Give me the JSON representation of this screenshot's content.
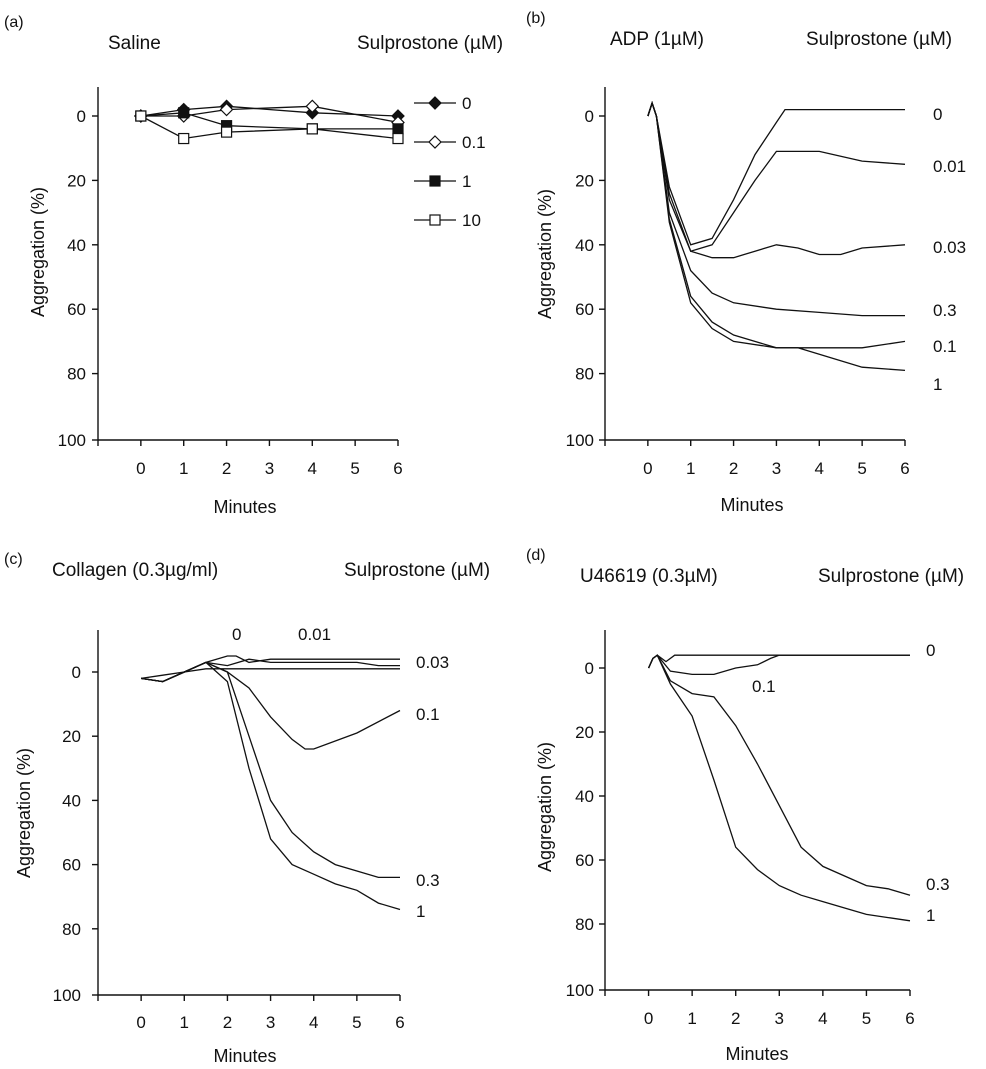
{
  "chart_data": [
    {
      "id": "a",
      "type": "line",
      "panel_label": "(a)",
      "title": "Saline",
      "legend_title": "Sulprostone (µM)",
      "xlabel": "Minutes",
      "ylabel": "Aggregation (%)",
      "xlim": [
        -1,
        6
      ],
      "ylim": [
        -8,
        100
      ],
      "y_inverted": true,
      "xticks": [
        "0",
        "1",
        "2",
        "3",
        "4",
        "5",
        "6"
      ],
      "yticks": [
        "0",
        "20",
        "40",
        "60",
        "80",
        "100"
      ],
      "legend_placement": "right",
      "series": [
        {
          "name": "0",
          "marker": "filled-diamond",
          "x": [
            0,
            1,
            2,
            4,
            6
          ],
          "y": [
            0,
            -2,
            -3,
            -1,
            0
          ]
        },
        {
          "name": "0.1",
          "marker": "open-diamond",
          "x": [
            0,
            1,
            2,
            4,
            6
          ],
          "y": [
            0,
            0,
            -2,
            -3,
            2
          ]
        },
        {
          "name": "1",
          "marker": "filled-square",
          "x": [
            0,
            1,
            2,
            4,
            6
          ],
          "y": [
            0,
            -1,
            3,
            4,
            4
          ]
        },
        {
          "name": "10",
          "marker": "open-square",
          "x": [
            0,
            1,
            2,
            4,
            6
          ],
          "y": [
            0,
            7,
            5,
            4,
            7
          ]
        }
      ]
    },
    {
      "id": "b",
      "type": "line",
      "panel_label": "(b)",
      "title": "ADP (1µM)",
      "legend_title": "Sulprostone (µM)",
      "xlabel": "Minutes",
      "ylabel": "Aggregation (%)",
      "xlim": [
        -1,
        6
      ],
      "ylim": [
        -8,
        100
      ],
      "y_inverted": true,
      "xticks": [
        "0",
        "1",
        "2",
        "3",
        "4",
        "5",
        "6"
      ],
      "yticks": [
        "0",
        "20",
        "40",
        "60",
        "80",
        "100"
      ],
      "series": [
        {
          "name": "0",
          "x": [
            0,
            0.1,
            0.2,
            0.5,
            1.0,
            1.5,
            2.0,
            2.5,
            3.0,
            3.2,
            4,
            5,
            6
          ],
          "y": [
            0,
            -4,
            0,
            22,
            40,
            38,
            26,
            12,
            2,
            -2,
            -2,
            -2,
            -2
          ]
        },
        {
          "name": "0.01",
          "x": [
            0,
            0.1,
            0.2,
            0.5,
            1.0,
            1.5,
            2.0,
            2.5,
            3.0,
            4.0,
            5.0,
            6.0
          ],
          "y": [
            0,
            -4,
            0,
            24,
            42,
            40,
            30,
            20,
            11,
            11,
            14,
            15
          ]
        },
        {
          "name": "0.03",
          "x": [
            0,
            0.1,
            0.2,
            0.5,
            1.0,
            1.5,
            2.0,
            2.5,
            3.0,
            3.5,
            4.0,
            4.5,
            5.0,
            6.0
          ],
          "y": [
            0,
            -4,
            0,
            26,
            42,
            44,
            44,
            42,
            40,
            41,
            43,
            43,
            41,
            40
          ]
        },
        {
          "name": "0.3",
          "x": [
            0,
            0.1,
            0.2,
            0.5,
            1.0,
            1.5,
            2.0,
            3.0,
            4.0,
            5.0,
            6.0
          ],
          "y": [
            0,
            -4,
            0,
            30,
            48,
            55,
            58,
            60,
            61,
            62,
            62
          ]
        },
        {
          "name": "0.1",
          "x": [
            0,
            0.1,
            0.2,
            0.5,
            1.0,
            1.5,
            2.0,
            3.0,
            4.0,
            5.0,
            6.0
          ],
          "y": [
            0,
            -4,
            0,
            32,
            56,
            64,
            68,
            72,
            72,
            72,
            70
          ]
        },
        {
          "name": "1",
          "x": [
            0,
            0.1,
            0.2,
            0.5,
            1.0,
            1.5,
            2.0,
            3.0,
            3.5,
            4.0,
            5.0,
            6.0
          ],
          "y": [
            0,
            -4,
            0,
            33,
            58,
            66,
            70,
            72,
            72,
            74,
            78,
            79
          ]
        }
      ]
    },
    {
      "id": "c",
      "type": "line",
      "panel_label": "(c)",
      "title": "Collagen (0.3µg/ml)",
      "legend_title": "Sulprostone (µM)",
      "xlabel": "Minutes",
      "ylabel": "Aggregation (%)",
      "xlim": [
        -1,
        6
      ],
      "ylim": [
        -13,
        100
      ],
      "y_inverted": true,
      "xticks": [
        "0",
        "1",
        "2",
        "3",
        "4",
        "5",
        "6"
      ],
      "yticks": [
        "0",
        "20",
        "40",
        "60",
        "80",
        "100"
      ],
      "series": [
        {
          "name": "0",
          "x": [
            0,
            0.5,
            1.0,
            1.5,
            2.0,
            2.2,
            2.5,
            3.0,
            5.0,
            6.0
          ],
          "y": [
            2,
            3,
            0,
            -3,
            -5,
            -5,
            -3,
            -4,
            -4,
            -4
          ]
        },
        {
          "name": "0.01",
          "x": [
            0,
            0.5,
            1.0,
            1.5,
            2.0,
            2.5,
            3.0,
            5.0,
            5.5,
            6.0
          ],
          "y": [
            2,
            3,
            0,
            -3,
            -2,
            -4,
            -3,
            -3,
            -2,
            -2
          ]
        },
        {
          "name": "0.03",
          "x": [
            0,
            0.5,
            1.0,
            1.5,
            2.0,
            3.0,
            4.0,
            5.0,
            6.0
          ],
          "y": [
            2,
            1,
            0,
            -1,
            -1,
            -1,
            -1,
            -1,
            -1
          ]
        },
        {
          "name": "0.1",
          "x": [
            0,
            0.5,
            1.0,
            1.5,
            2.0,
            2.5,
            3.0,
            3.5,
            3.8,
            4.0,
            5.0,
            6.0
          ],
          "y": [
            2,
            3,
            0,
            -3,
            0,
            5,
            14,
            21,
            24,
            24,
            19,
            12
          ]
        },
        {
          "name": "0.3",
          "x": [
            0,
            0.5,
            1.0,
            1.5,
            2.0,
            2.5,
            3.0,
            3.5,
            4.0,
            4.5,
            5.0,
            5.5,
            6.0
          ],
          "y": [
            2,
            3,
            0,
            -3,
            0,
            20,
            40,
            50,
            56,
            60,
            62,
            64,
            64
          ]
        },
        {
          "name": "1",
          "x": [
            0,
            0.5,
            1.0,
            1.5,
            2.0,
            2.5,
            3.0,
            3.5,
            4.0,
            4.5,
            5.0,
            5.5,
            6.0
          ],
          "y": [
            2,
            3,
            0,
            -3,
            3,
            30,
            52,
            60,
            63,
            66,
            68,
            72,
            74
          ]
        }
      ]
    },
    {
      "id": "d",
      "type": "line",
      "panel_label": "(d)",
      "title": "U46619 (0.3µM)",
      "legend_title": "Sulprostone (µM)",
      "xlabel": "Minutes",
      "ylabel": "Aggregation (%)",
      "xlim": [
        -1,
        6
      ],
      "ylim": [
        -6,
        100
      ],
      "y_inverted": true,
      "xticks": [
        "0",
        "1",
        "2",
        "3",
        "4",
        "5",
        "6"
      ],
      "yticks": [
        "0",
        "20",
        "40",
        "60",
        "80",
        "100"
      ],
      "series": [
        {
          "name": "0",
          "x": [
            0,
            0.1,
            0.2,
            0.4,
            0.6,
            1.0,
            2.0,
            3.0,
            4.0,
            5.0,
            6.0
          ],
          "y": [
            0,
            -3,
            -4,
            -2,
            -4,
            -4,
            -4,
            -4,
            -4,
            -4,
            -4
          ]
        },
        {
          "name": "0.1",
          "x": [
            0,
            0.1,
            0.2,
            0.5,
            1.0,
            1.5,
            2.0,
            2.5,
            2.8,
            3.0,
            6.0
          ],
          "y": [
            0,
            -3,
            -4,
            1,
            2,
            2,
            0,
            -1,
            -3,
            -4,
            -4
          ]
        },
        {
          "name": "0.3",
          "x": [
            0,
            0.1,
            0.2,
            0.5,
            1.0,
            1.5,
            2.0,
            2.5,
            3.0,
            3.5,
            4.0,
            4.5,
            5.0,
            5.5,
            6.0
          ],
          "y": [
            0,
            -3,
            -4,
            4,
            8,
            9,
            18,
            30,
            43,
            56,
            62,
            65,
            68,
            69,
            71
          ]
        },
        {
          "name": "1",
          "x": [
            0,
            0.1,
            0.2,
            0.5,
            1.0,
            1.5,
            2.0,
            2.5,
            3.0,
            3.5,
            4.0,
            4.5,
            5.0,
            5.5,
            6.0
          ],
          "y": [
            0,
            -3,
            -4,
            5,
            15,
            35,
            56,
            63,
            68,
            71,
            73,
            75,
            77,
            78,
            79
          ]
        }
      ]
    }
  ]
}
